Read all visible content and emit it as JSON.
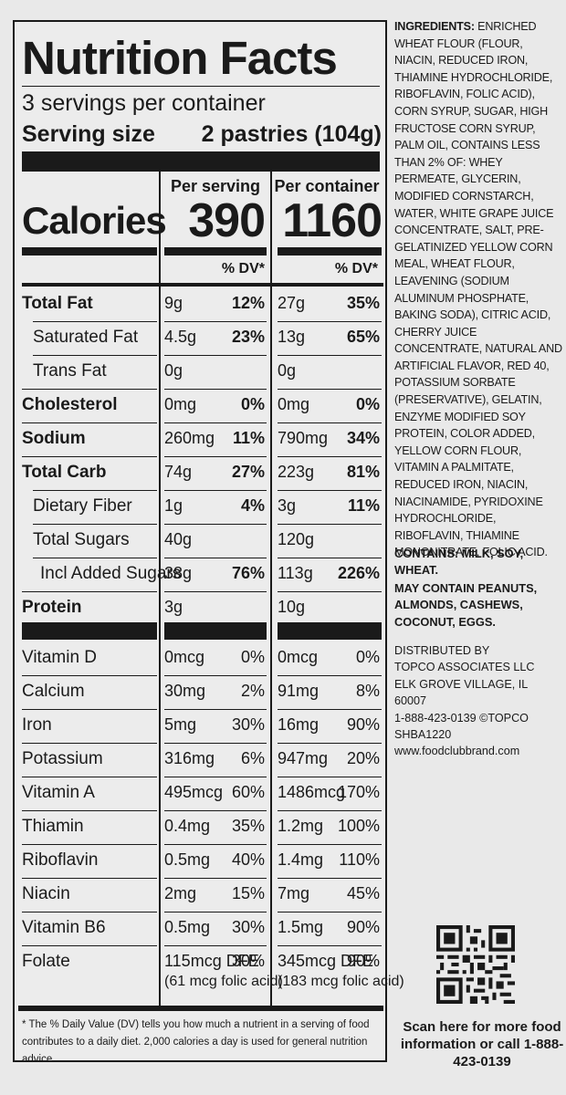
{
  "label": {
    "title": "Nutrition Facts",
    "servings": "3 servings per container",
    "serving_size_label": "Serving size",
    "serving_size_value": "2 pastries (104g)",
    "col1_head": "Per serving",
    "col2_head": "Per container",
    "calories_label": "Calories",
    "calories_serving": "390",
    "calories_container": "1160",
    "dv_head": "% DV*",
    "nutrients": [
      {
        "name": "Total Fat",
        "amt1": "9g",
        "dv1": "12%",
        "amt2": "27g",
        "dv2": "35%"
      },
      {
        "name": "Saturated Fat",
        "amt1": "4.5g",
        "dv1": "23%",
        "amt2": "13g",
        "dv2": "65%"
      },
      {
        "name": "Trans Fat",
        "amt1": "0g",
        "dv1": "",
        "amt2": "0g",
        "dv2": ""
      },
      {
        "name": "Cholesterol",
        "amt1": "0mg",
        "dv1": "0%",
        "amt2": "0mg",
        "dv2": "0%"
      },
      {
        "name": "Sodium",
        "amt1": "260mg",
        "dv1": "11%",
        "amt2": "790mg",
        "dv2": "34%"
      },
      {
        "name": "Total Carb",
        "amt1": "74g",
        "dv1": "27%",
        "amt2": "223g",
        "dv2": "81%"
      },
      {
        "name": "Dietary Fiber",
        "amt1": "1g",
        "dv1": "4%",
        "amt2": "3g",
        "dv2": "11%"
      },
      {
        "name": "Total Sugars",
        "amt1": "40g",
        "dv1": "",
        "amt2": "120g",
        "dv2": ""
      },
      {
        "name": "Incl Added Sugars",
        "amt1": "38g",
        "dv1": "76%",
        "amt2": "113g",
        "dv2": "226%"
      },
      {
        "name": "Protein",
        "amt1": "3g",
        "dv1": "",
        "amt2": "10g",
        "dv2": ""
      }
    ],
    "vitamins": [
      {
        "name": "Vitamin D",
        "amt1": "0mcg",
        "dv1": "0%",
        "amt2": "0mcg",
        "dv2": "0%"
      },
      {
        "name": "Calcium",
        "amt1": "30mg",
        "dv1": "2%",
        "amt2": "91mg",
        "dv2": "8%"
      },
      {
        "name": "Iron",
        "amt1": "5mg",
        "dv1": "30%",
        "amt2": "16mg",
        "dv2": "90%"
      },
      {
        "name": "Potassium",
        "amt1": "316mg",
        "dv1": "6%",
        "amt2": "947mg",
        "dv2": "20%"
      },
      {
        "name": "Vitamin A",
        "amt1": "495mcg",
        "dv1": "60%",
        "amt2": "1486mcg",
        "dv2": "170%"
      },
      {
        "name": "Thiamin",
        "amt1": "0.4mg",
        "dv1": "35%",
        "amt2": "1.2mg",
        "dv2": "100%"
      },
      {
        "name": "Riboflavin",
        "amt1": "0.5mg",
        "dv1": "40%",
        "amt2": "1.4mg",
        "dv2": "110%"
      },
      {
        "name": "Niacin",
        "amt1": "2mg",
        "dv1": "15%",
        "amt2": "7mg",
        "dv2": "45%"
      },
      {
        "name": "Vitamin B6",
        "amt1": "0.5mg",
        "dv1": "30%",
        "amt2": "1.5mg",
        "dv2": "90%"
      },
      {
        "name": "Folate",
        "amt1": "115mcg DFE",
        "dv1": "30%",
        "amt2": "345mcg DFE",
        "dv2": "90%",
        "sub1": "(61 mcg folic acid)",
        "sub2": "(183 mcg folic acid)"
      }
    ],
    "footnote": "* The % Daily Value (DV) tells you how much a nutrient in a serving of food contributes to a daily diet. 2,000 calories a day is used for general nutrition advice."
  },
  "side": {
    "ingredients_label": "INGREDIENTS:",
    "ingredients_text": "ENRICHED WHEAT FLOUR (FLOUR, NIACIN, REDUCED IRON, THIAMINE HYDROCHLORIDE, RIBOFLAVIN, FOLIC ACID), CORN SYRUP, SUGAR, HIGH FRUCTOSE CORN SYRUP, PALM OIL, CONTAINS LESS THAN 2% OF: WHEY PERMEATE, GLYCERIN, MODIFIED CORNSTARCH, WATER, WHITE GRAPE JUICE CONCENTRATE, SALT, PRE-GELATINIZED YELLOW CORN MEAL, WHEAT FLOUR, LEAVENING (SODIUM ALUMINUM PHOSPHATE, BAKING SODA), CITRIC ACID, CHERRY JUICE CONCENTRATE, NATURAL AND ARTIFICIAL FLAVOR, RED 40, POTASSIUM SORBATE (PRESERVATIVE), GELATIN, ENZYME MODIFIED SOY PROTEIN, COLOR ADDED, YELLOW CORN FLOUR, VITAMIN A PALMITATE, REDUCED IRON, NIACIN, NIACINAMIDE, PYRIDOXINE HYDROCHLORIDE, RIBOFLAVIN, THIAMINE MONONITRATE, FOLIC ACID.",
    "contains": "CONTAINS: MILK, SOY, WHEAT.",
    "may_contain": "MAY CONTAIN PEANUTS, ALMONDS, CASHEWS, COCONUT, EGGS.",
    "distrib_lines": [
      "DISTRIBUTED BY",
      "TOPCO ASSOCIATES LLC",
      "ELK GROVE VILLAGE, IL  60007",
      "1-888-423-0139  ©TOPCO",
      "SHBA1220",
      "www.foodclubbrand.com"
    ],
    "scan_text": "Scan here for more food information or call 1-888-423-0139"
  },
  "colors": {
    "ink": "#1a1a1a",
    "background": "#e9e9e9"
  }
}
